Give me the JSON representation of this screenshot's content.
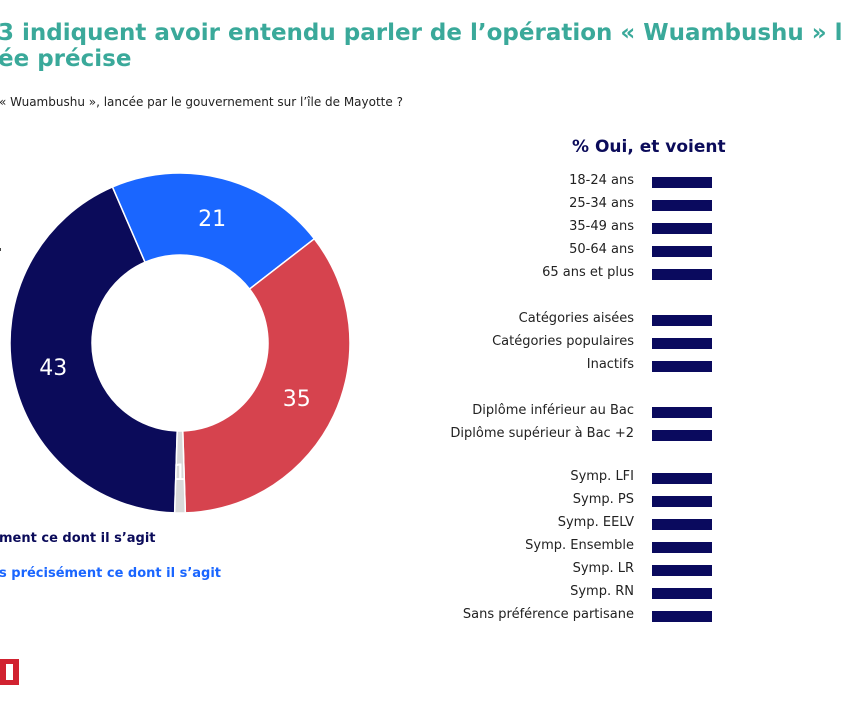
{
  "title": {
    "line1": "3 indiquent avoir entendu parler de l’opération « Wuambushu » l",
    "line2": "ée précise"
  },
  "subtitle": "« Wuambushu », lancée par le gouvernement sur l’île de Mayotte ?",
  "legend": {
    "item1": "ment ce dont il s’agit",
    "item2": "s précisément ce dont il s’agit"
  },
  "right_panel": {
    "title": "% Oui, et voient",
    "rows": [
      {
        "label": "18-24 ans"
      },
      {
        "label": "25-34 ans"
      },
      {
        "label": "35-49 ans"
      },
      {
        "label": "50-64 ans"
      },
      {
        "label": "65 ans et plus"
      },
      {
        "label": "Catégories aisées"
      },
      {
        "label": "Catégories populaires"
      },
      {
        "label": "Inactifs"
      },
      {
        "label": "Diplôme inférieur au Bac"
      },
      {
        "label": "Diplôme supérieur à Bac +2"
      },
      {
        "label": "Symp. LFI"
      },
      {
        "label": "Symp. PS"
      },
      {
        "label": "Symp. EELV"
      },
      {
        "label": "Symp. Ensemble"
      },
      {
        "label": "Symp. LR"
      },
      {
        "label": "Symp. RN"
      },
      {
        "label": "Sans préférence partisane"
      }
    ]
  },
  "chart_data": {
    "type": "pie",
    "variant": "donut",
    "slices": [
      {
        "value": 43,
        "label": "43",
        "color": "#0b0b5a"
      },
      {
        "value": 21,
        "label": "21",
        "color": "#1a66ff"
      },
      {
        "value": 35,
        "label": "35",
        "color": "#d6434e"
      },
      {
        "value": 1,
        "label": "1",
        "color": "#d9d9d9"
      }
    ]
  }
}
